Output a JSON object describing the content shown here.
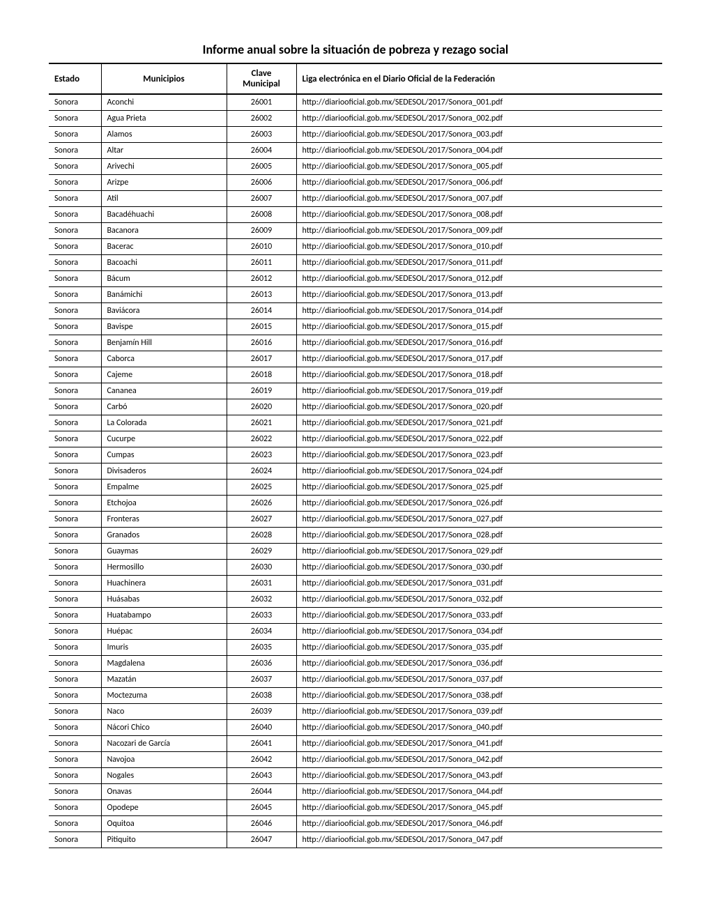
{
  "title": "Informe anual sobre la situación de pobreza y rezago social",
  "table": {
    "columns": [
      "Estado",
      "Municipios",
      "Clave Municipal",
      "Liga electrónica en el Diario Oficial de la Federación"
    ],
    "rows": [
      [
        "Sonora",
        "Aconchi",
        "26001",
        "http://diariooficial.gob.mx/SEDESOL/2017/Sonora_001.pdf"
      ],
      [
        "Sonora",
        "Agua Prieta",
        "26002",
        "http://diariooficial.gob.mx/SEDESOL/2017/Sonora_002.pdf"
      ],
      [
        "Sonora",
        "Alamos",
        "26003",
        "http://diariooficial.gob.mx/SEDESOL/2017/Sonora_003.pdf"
      ],
      [
        "Sonora",
        "Altar",
        "26004",
        "http://diariooficial.gob.mx/SEDESOL/2017/Sonora_004.pdf"
      ],
      [
        "Sonora",
        "Arivechi",
        "26005",
        "http://diariooficial.gob.mx/SEDESOL/2017/Sonora_005.pdf"
      ],
      [
        "Sonora",
        "Arizpe",
        "26006",
        "http://diariooficial.gob.mx/SEDESOL/2017/Sonora_006.pdf"
      ],
      [
        "Sonora",
        "Atil",
        "26007",
        "http://diariooficial.gob.mx/SEDESOL/2017/Sonora_007.pdf"
      ],
      [
        "Sonora",
        "Bacadéhuachi",
        "26008",
        "http://diariooficial.gob.mx/SEDESOL/2017/Sonora_008.pdf"
      ],
      [
        "Sonora",
        "Bacanora",
        "26009",
        "http://diariooficial.gob.mx/SEDESOL/2017/Sonora_009.pdf"
      ],
      [
        "Sonora",
        "Bacerac",
        "26010",
        "http://diariooficial.gob.mx/SEDESOL/2017/Sonora_010.pdf"
      ],
      [
        "Sonora",
        "Bacoachi",
        "26011",
        "http://diariooficial.gob.mx/SEDESOL/2017/Sonora_011.pdf"
      ],
      [
        "Sonora",
        "Bácum",
        "26012",
        "http://diariooficial.gob.mx/SEDESOL/2017/Sonora_012.pdf"
      ],
      [
        "Sonora",
        "Banámichi",
        "26013",
        "http://diariooficial.gob.mx/SEDESOL/2017/Sonora_013.pdf"
      ],
      [
        "Sonora",
        "Baviácora",
        "26014",
        "http://diariooficial.gob.mx/SEDESOL/2017/Sonora_014.pdf"
      ],
      [
        "Sonora",
        "Bavispe",
        "26015",
        "http://diariooficial.gob.mx/SEDESOL/2017/Sonora_015.pdf"
      ],
      [
        "Sonora",
        "Benjamín Hill",
        "26016",
        "http://diariooficial.gob.mx/SEDESOL/2017/Sonora_016.pdf"
      ],
      [
        "Sonora",
        "Caborca",
        "26017",
        "http://diariooficial.gob.mx/SEDESOL/2017/Sonora_017.pdf"
      ],
      [
        "Sonora",
        "Cajeme",
        "26018",
        "http://diariooficial.gob.mx/SEDESOL/2017/Sonora_018.pdf"
      ],
      [
        "Sonora",
        "Cananea",
        "26019",
        "http://diariooficial.gob.mx/SEDESOL/2017/Sonora_019.pdf"
      ],
      [
        "Sonora",
        "Carbó",
        "26020",
        "http://diariooficial.gob.mx/SEDESOL/2017/Sonora_020.pdf"
      ],
      [
        "Sonora",
        "La Colorada",
        "26021",
        "http://diariooficial.gob.mx/SEDESOL/2017/Sonora_021.pdf"
      ],
      [
        "Sonora",
        "Cucurpe",
        "26022",
        "http://diariooficial.gob.mx/SEDESOL/2017/Sonora_022.pdf"
      ],
      [
        "Sonora",
        "Cumpas",
        "26023",
        "http://diariooficial.gob.mx/SEDESOL/2017/Sonora_023.pdf"
      ],
      [
        "Sonora",
        "Divisaderos",
        "26024",
        "http://diariooficial.gob.mx/SEDESOL/2017/Sonora_024.pdf"
      ],
      [
        "Sonora",
        "Empalme",
        "26025",
        "http://diariooficial.gob.mx/SEDESOL/2017/Sonora_025.pdf"
      ],
      [
        "Sonora",
        "Etchojoa",
        "26026",
        "http://diariooficial.gob.mx/SEDESOL/2017/Sonora_026.pdf"
      ],
      [
        "Sonora",
        "Fronteras",
        "26027",
        "http://diariooficial.gob.mx/SEDESOL/2017/Sonora_027.pdf"
      ],
      [
        "Sonora",
        "Granados",
        "26028",
        "http://diariooficial.gob.mx/SEDESOL/2017/Sonora_028.pdf"
      ],
      [
        "Sonora",
        "Guaymas",
        "26029",
        "http://diariooficial.gob.mx/SEDESOL/2017/Sonora_029.pdf"
      ],
      [
        "Sonora",
        "Hermosillo",
        "26030",
        "http://diariooficial.gob.mx/SEDESOL/2017/Sonora_030.pdf"
      ],
      [
        "Sonora",
        "Huachinera",
        "26031",
        "http://diariooficial.gob.mx/SEDESOL/2017/Sonora_031.pdf"
      ],
      [
        "Sonora",
        "Huásabas",
        "26032",
        "http://diariooficial.gob.mx/SEDESOL/2017/Sonora_032.pdf"
      ],
      [
        "Sonora",
        "Huatabampo",
        "26033",
        "http://diariooficial.gob.mx/SEDESOL/2017/Sonora_033.pdf"
      ],
      [
        "Sonora",
        "Huépac",
        "26034",
        "http://diariooficial.gob.mx/SEDESOL/2017/Sonora_034.pdf"
      ],
      [
        "Sonora",
        "Imuris",
        "26035",
        "http://diariooficial.gob.mx/SEDESOL/2017/Sonora_035.pdf"
      ],
      [
        "Sonora",
        "Magdalena",
        "26036",
        "http://diariooficial.gob.mx/SEDESOL/2017/Sonora_036.pdf"
      ],
      [
        "Sonora",
        "Mazatán",
        "26037",
        "http://diariooficial.gob.mx/SEDESOL/2017/Sonora_037.pdf"
      ],
      [
        "Sonora",
        "Moctezuma",
        "26038",
        "http://diariooficial.gob.mx/SEDESOL/2017/Sonora_038.pdf"
      ],
      [
        "Sonora",
        "Naco",
        "26039",
        "http://diariooficial.gob.mx/SEDESOL/2017/Sonora_039.pdf"
      ],
      [
        "Sonora",
        "Nácori Chico",
        "26040",
        "http://diariooficial.gob.mx/SEDESOL/2017/Sonora_040.pdf"
      ],
      [
        "Sonora",
        "Nacozari de García",
        "26041",
        "http://diariooficial.gob.mx/SEDESOL/2017/Sonora_041.pdf"
      ],
      [
        "Sonora",
        "Navojoa",
        "26042",
        "http://diariooficial.gob.mx/SEDESOL/2017/Sonora_042.pdf"
      ],
      [
        "Sonora",
        "Nogales",
        "26043",
        "http://diariooficial.gob.mx/SEDESOL/2017/Sonora_043.pdf"
      ],
      [
        "Sonora",
        "Onavas",
        "26044",
        "http://diariooficial.gob.mx/SEDESOL/2017/Sonora_044.pdf"
      ],
      [
        "Sonora",
        "Opodepe",
        "26045",
        "http://diariooficial.gob.mx/SEDESOL/2017/Sonora_045.pdf"
      ],
      [
        "Sonora",
        "Oquitoa",
        "26046",
        "http://diariooficial.gob.mx/SEDESOL/2017/Sonora_046.pdf"
      ],
      [
        "Sonora",
        "Pitiquito",
        "26047",
        "http://diariooficial.gob.mx/SEDESOL/2017/Sonora_047.pdf"
      ]
    ]
  }
}
